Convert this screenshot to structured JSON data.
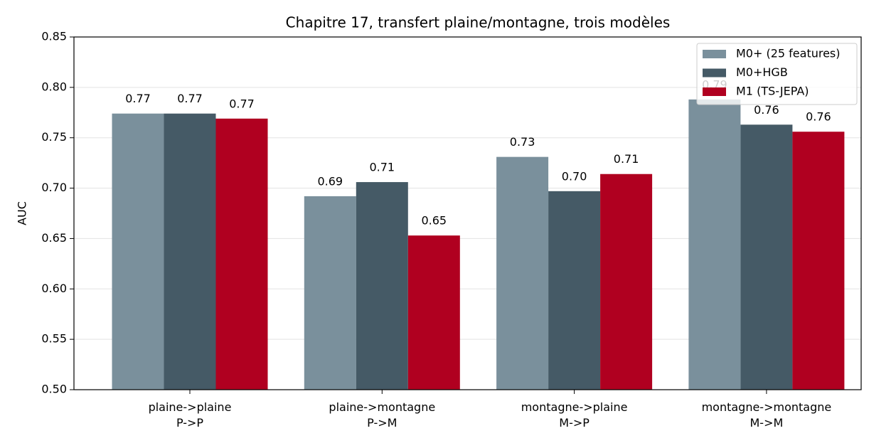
{
  "chart_data": {
    "type": "bar",
    "title": "Chapitre 17, transfert plaine/montagne, trois modèles",
    "y_label": "AUC",
    "categories": [
      "plaine->plaine\nP->P",
      "plaine->montagne\nP->M",
      "montagne->plaine\nM->P",
      "montagne->montagne\nM->M"
    ],
    "series": [
      {
        "name": "M0+ (25 features)",
        "color": "#7a909c",
        "values": [
          0.774,
          0.692,
          0.731,
          0.788
        ],
        "value_labels": [
          "0.77",
          "0.69",
          "0.73",
          "0.79"
        ]
      },
      {
        "name": "M0+HGB",
        "color": "#455a66",
        "values": [
          0.774,
          0.706,
          0.697,
          0.763
        ],
        "value_labels": [
          "0.77",
          "0.71",
          "0.70",
          "0.76"
        ]
      },
      {
        "name": "M1 (TS-JEPA)",
        "color": "#b00020",
        "values": [
          0.769,
          0.653,
          0.714,
          0.756
        ],
        "value_labels": [
          "0.77",
          "0.65",
          "0.71",
          "0.76"
        ]
      }
    ],
    "ylim": [
      0.5,
      0.85
    ],
    "yticks": [
      {
        "value": 0.5,
        "label": "0.50"
      },
      0.55,
      {
        "value": 0.6,
        "label": "0.60"
      },
      0.65,
      {
        "value": 0.7,
        "label": "0.70"
      },
      0.75,
      {
        "value": 0.8,
        "label": "0.80"
      },
      0.85
    ],
    "grid": true,
    "legend": "upper right"
  }
}
